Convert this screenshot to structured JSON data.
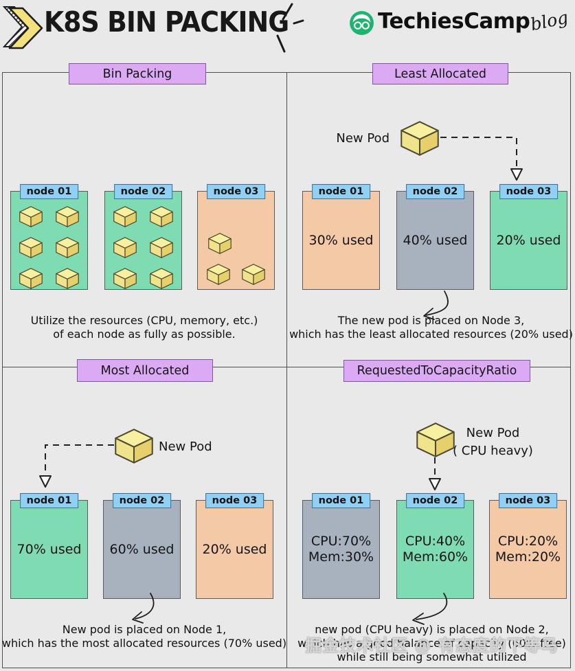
{
  "header": {
    "title": "K8S BIN PACKING",
    "brand": "TechiesCamp",
    "brand_suffix": "blog"
  },
  "quadrants": {
    "bin_packing": {
      "title": "Bin Packing",
      "nodes": [
        {
          "label": "node 01",
          "color": "green",
          "pods": 6
        },
        {
          "label": "node 02",
          "color": "green",
          "pods": 6
        },
        {
          "label": "node 03",
          "color": "peach",
          "pods": 3
        }
      ],
      "caption_line1": "Utilize the resources (CPU, memory, etc.)",
      "caption_line2": "of each node as fully as possible."
    },
    "least_allocated": {
      "title": "Least Allocated",
      "new_pod_label": "New Pod",
      "nodes": [
        {
          "label": "node 01",
          "color": "peach",
          "value": "30% used"
        },
        {
          "label": "node 02",
          "color": "gray",
          "value": "40% used"
        },
        {
          "label": "node 03",
          "color": "green",
          "value": "20% used"
        }
      ],
      "caption_line1": "The new pod is placed on Node 3,",
      "caption_line2": "which has the least allocated resources (20% used)"
    },
    "most_allocated": {
      "title": "Most Allocated",
      "new_pod_label": "New Pod",
      "nodes": [
        {
          "label": "node 01",
          "color": "green",
          "value": "70% used"
        },
        {
          "label": "node 02",
          "color": "gray",
          "value": "60% used"
        },
        {
          "label": "node 03",
          "color": "peach",
          "value": "20% used"
        }
      ],
      "caption_line1": "New pod is placed on Node 1,",
      "caption_line2": "which has the most allocated resources (70% used)"
    },
    "requested_to_capacity_ratio": {
      "title": "RequestedToCapacityRatio",
      "new_pod_label": "New Pod",
      "new_pod_sublabel": "( CPU heavy)",
      "nodes": [
        {
          "label": "node 01",
          "color": "gray",
          "cpu": "CPU:70%",
          "mem": "Mem:30%"
        },
        {
          "label": "node 02",
          "color": "green",
          "cpu": "CPU:40%",
          "mem": "Mem:60%"
        },
        {
          "label": "node 03",
          "color": "peach",
          "cpu": "CPU:20%",
          "mem": "Mem:20%"
        }
      ],
      "caption_line1": "new pod (CPU heavy) is placed on Node 2,",
      "caption_line2": "which has a good balance of capacity (60% free)",
      "caption_line3": "while still being somewhat utilized"
    }
  },
  "watermark": "掘金技术社区 @ 有态度的下等马",
  "icons": [
    "k8s-chevron-logo",
    "techiescamp-logo-icon",
    "pod-cube-icon",
    "dashed-arrow",
    "curved-arrow"
  ],
  "colors": {
    "background": "#e9e9e9",
    "node_green": "#7fdcb2",
    "node_peach": "#f4c9a6",
    "node_gray": "#a8b2bf",
    "label_blue": "#90d0f4",
    "header_purple": "#dcaaf5",
    "brand_green": "#1cb56f",
    "cube_yellow": "#f1e38b",
    "line_dark": "#4e4e4e"
  }
}
